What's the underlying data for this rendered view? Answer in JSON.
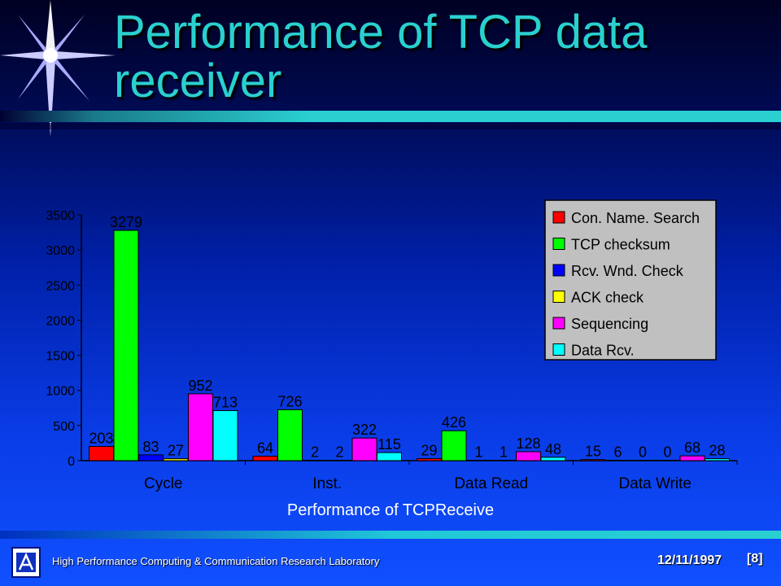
{
  "slide": {
    "title": "Performance of TCP data receiver",
    "caption": "Performance of TCPReceive",
    "footer_lab": "High Performance Computing & Communication Research Laboratory",
    "footer_date": "12/11/1997",
    "footer_page": "[8]"
  },
  "chart_data": {
    "type": "bar",
    "title": "",
    "xlabel": "",
    "ylabel": "",
    "categories": [
      "Cycle",
      "Inst.",
      "Data Read",
      "Data Write"
    ],
    "ylim": [
      0,
      3500
    ],
    "yticks": [
      0,
      500,
      1000,
      1500,
      2000,
      2500,
      3000,
      3500
    ],
    "legend_position": "top-right",
    "grid": false,
    "series": [
      {
        "name": "Con. Name. Search",
        "color": "#ff0000",
        "values": [
          203,
          64,
          29,
          15
        ]
      },
      {
        "name": "TCP checksum",
        "color": "#00ff00",
        "values": [
          3279,
          726,
          426,
          6
        ]
      },
      {
        "name": "Rcv. Wnd. Check",
        "color": "#0000ff",
        "values": [
          83,
          2,
          1,
          0
        ]
      },
      {
        "name": "ACK check",
        "color": "#ffff00",
        "values": [
          27,
          2,
          1,
          0
        ]
      },
      {
        "name": "Sequencing",
        "color": "#ff00ff",
        "values": [
          952,
          322,
          128,
          68
        ]
      },
      {
        "name": "Data Rcv.",
        "color": "#00ffff",
        "values": [
          713,
          115,
          48,
          28
        ]
      }
    ]
  }
}
